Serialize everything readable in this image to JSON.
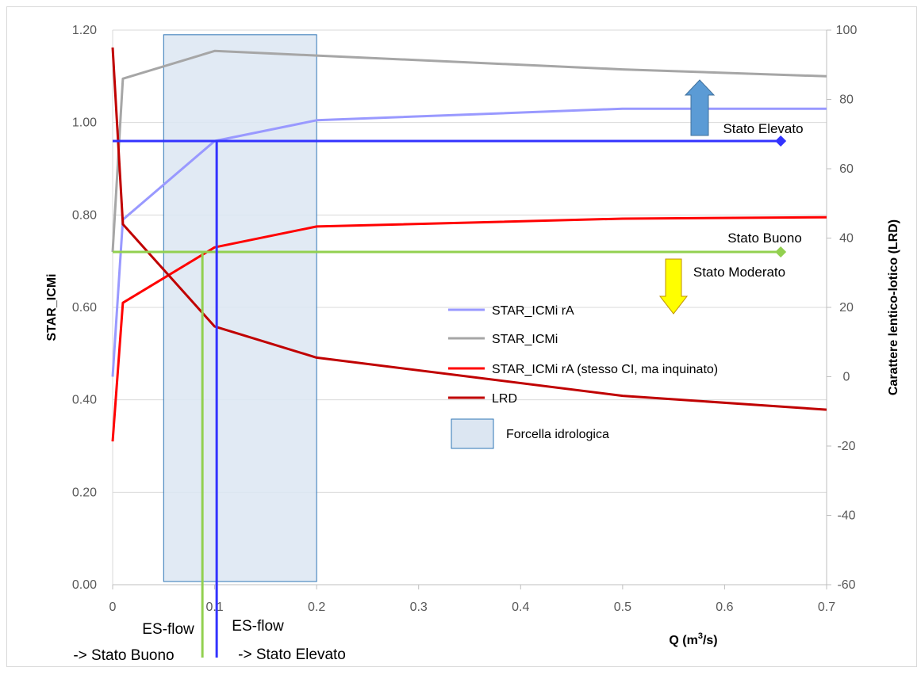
{
  "chart_data": {
    "type": "line",
    "xlabel": "Q (m",
    "xlabel_sup": "3",
    "xlabel_suffix": "/s)",
    "ylabel": "STAR_ICMi",
    "y2label": "Carattere lentico-lotico  (LRD)",
    "xlim": [
      0,
      0.7
    ],
    "ylim": [
      0,
      1.2
    ],
    "y2lim": [
      -60,
      100
    ],
    "x_ticks": [
      "0",
      "0.1",
      "0.2",
      "0.3",
      "0.4",
      "0.5",
      "0.6",
      "0.7"
    ],
    "y_ticks": [
      "0.00",
      "0.20",
      "0.40",
      "0.60",
      "0.80",
      "1.00",
      "1.20"
    ],
    "y2_ticks": [
      "-60",
      "-40",
      "-20",
      "0",
      "20",
      "40",
      "60",
      "80",
      "100"
    ],
    "grid": true,
    "legend_position": "center-right",
    "series": [
      {
        "name": "STAR_ICMi rA",
        "axis": "left",
        "color": "#9999ff",
        "x": [
          0,
          0.01,
          0.1,
          0.2,
          0.5,
          0.7
        ],
        "y": [
          0.45,
          0.79,
          0.96,
          1.005,
          1.03,
          1.03
        ]
      },
      {
        "name": "STAR_ICMi",
        "axis": "left",
        "color": "#a6a6a6",
        "x": [
          0,
          0.01,
          0.1,
          0.2,
          0.5,
          0.7
        ],
        "y": [
          0.72,
          1.095,
          1.155,
          1.145,
          1.115,
          1.1
        ]
      },
      {
        "name": "STAR_ICMi rA (stesso CI, ma inquinato)",
        "axis": "left",
        "color": "#ff0000",
        "x": [
          0,
          0.01,
          0.1,
          0.2,
          0.5,
          0.7
        ],
        "y": [
          0.31,
          0.61,
          0.73,
          0.775,
          0.792,
          0.795
        ]
      },
      {
        "name": "LRD",
        "axis": "right",
        "color": "#c00000",
        "x": [
          0,
          0.01,
          0.1,
          0.2,
          0.5,
          0.7
        ],
        "y": [
          95,
          44,
          14.5,
          5.5,
          -5.5,
          -9.5
        ]
      }
    ],
    "hydrological_band": {
      "name": "Forcella idrologica",
      "x0": 0.05,
      "x1": 0.2,
      "y0": 0,
      "y1": 1.19
    },
    "thresholds": [
      {
        "name": "Stato Elevato",
        "value": 0.96,
        "x_end": 0.655,
        "color": "#3333ff",
        "marker_color": "#3333ff"
      },
      {
        "name": "Stato Buono",
        "value": 0.72,
        "x_end": 0.655,
        "color": "#92d050",
        "marker_color": "#92d050"
      }
    ],
    "esflow_lines": [
      {
        "label_top": "ES-flow",
        "label_bottom": "-> Stato Buono",
        "x": 0.088,
        "y_top": 0.72,
        "color": "#92d050"
      },
      {
        "label_top": "ES-flow",
        "label_bottom": "-> Stato Elevato",
        "x": 0.102,
        "y_top": 0.96,
        "color": "#3333ff"
      }
    ],
    "annotations": [
      {
        "text": "Stato Elevato",
        "arrow": "up",
        "color": "#5b9bd5"
      },
      {
        "text": "Stato Buono",
        "arrow": "none"
      },
      {
        "text": "Stato Moderato",
        "arrow": "down",
        "color": "#ffff00"
      }
    ]
  }
}
